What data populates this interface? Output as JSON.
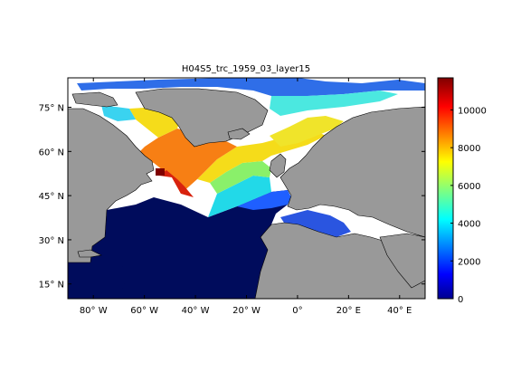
{
  "chart_data": {
    "type": "heatmap",
    "title": "H04S5_trc_1959_03_layer15",
    "x_ticks": [
      {
        "value": -80,
        "label": "80° W"
      },
      {
        "value": -60,
        "label": "60° W"
      },
      {
        "value": -40,
        "label": "40° W"
      },
      {
        "value": -20,
        "label": "20° W"
      },
      {
        "value": 0,
        "label": "0°"
      },
      {
        "value": 20,
        "label": "20° E"
      },
      {
        "value": 40,
        "label": "40° E"
      }
    ],
    "y_ticks": [
      {
        "value": 15,
        "label": "15° N"
      },
      {
        "value": 30,
        "label": "30° N"
      },
      {
        "value": 45,
        "label": "45° N"
      },
      {
        "value": 60,
        "label": "60° N"
      },
      {
        "value": 75,
        "label": "75° N"
      }
    ],
    "xlim": [
      -90,
      50
    ],
    "ylim": [
      10,
      85
    ],
    "colorbar": {
      "min": 0,
      "max": 11700,
      "ticks": [
        0,
        2000,
        4000,
        6000,
        8000,
        10000
      ],
      "colormap": "jet"
    },
    "colors": {
      "land": "#999999",
      "no_data": "#ffffff",
      "deep_low": "#000c5c",
      "high": "#7f0000"
    }
  }
}
